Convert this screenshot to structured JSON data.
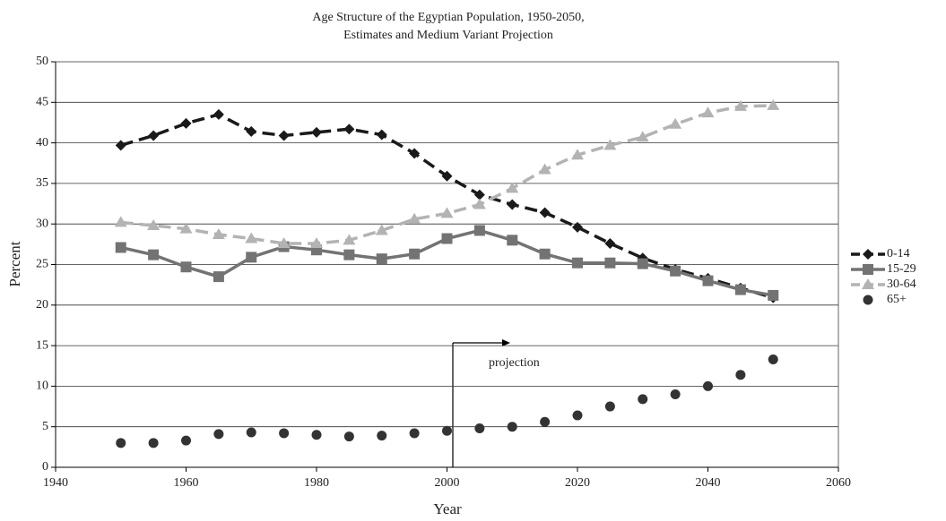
{
  "chart_data": {
    "type": "line",
    "title": "Age Structure of the Egyptian Population, 1950-2050,",
    "subtitle": "Estimates and Medium Variant Projection",
    "x_label": "Year",
    "y_label": "Percent",
    "annotation": "projection",
    "x": [
      1950,
      1955,
      1960,
      1965,
      1970,
      1975,
      1980,
      1985,
      1990,
      1995,
      2000,
      2005,
      2010,
      2015,
      2020,
      2025,
      2030,
      2035,
      2040,
      2045,
      2050
    ],
    "series": [
      {
        "name": "0-14",
        "color": "#1a1a1a",
        "marker": "diamond",
        "line": "dashed",
        "values": [
          39.7,
          40.9,
          42.4,
          43.5,
          41.4,
          40.9,
          41.3,
          41.7,
          41.0,
          38.7,
          35.9,
          33.6,
          32.4,
          31.4,
          29.6,
          27.6,
          25.8,
          24.4,
          23.3,
          22.1,
          20.9
        ]
      },
      {
        "name": "15-29",
        "color": "#737373",
        "marker": "square",
        "line": "solid",
        "values": [
          27.1,
          26.2,
          24.7,
          23.5,
          25.9,
          27.2,
          26.8,
          26.2,
          25.7,
          26.3,
          28.2,
          29.2,
          28.0,
          26.3,
          25.2,
          25.2,
          25.1,
          24.2,
          23.0,
          21.9,
          21.2
        ]
      },
      {
        "name": "30-64",
        "color": "#b3b3b3",
        "marker": "triangle",
        "line": "dashed",
        "values": [
          30.2,
          29.8,
          29.4,
          28.7,
          28.2,
          27.6,
          27.6,
          28.0,
          29.2,
          30.6,
          31.3,
          32.4,
          34.4,
          36.7,
          38.5,
          39.7,
          40.7,
          42.3,
          43.7,
          44.5,
          44.6
        ]
      },
      {
        "name": "65+",
        "color": "#333333",
        "marker": "circle",
        "line": "none",
        "values": [
          3.0,
          3.0,
          3.3,
          4.1,
          4.3,
          4.2,
          4.0,
          3.8,
          3.9,
          4.2,
          4.5,
          4.8,
          5.0,
          5.6,
          6.4,
          7.5,
          8.4,
          9.0,
          10.0,
          11.4,
          13.3
        ]
      }
    ],
    "xlim": [
      1940,
      2060
    ],
    "xticks": [
      1940,
      1960,
      1980,
      2000,
      2020,
      2040,
      2060
    ],
    "ylim": [
      0,
      50
    ],
    "yticks": [
      0,
      5,
      10,
      15,
      20,
      25,
      30,
      35,
      40,
      45,
      50
    ],
    "grid": true,
    "legend": "right"
  }
}
